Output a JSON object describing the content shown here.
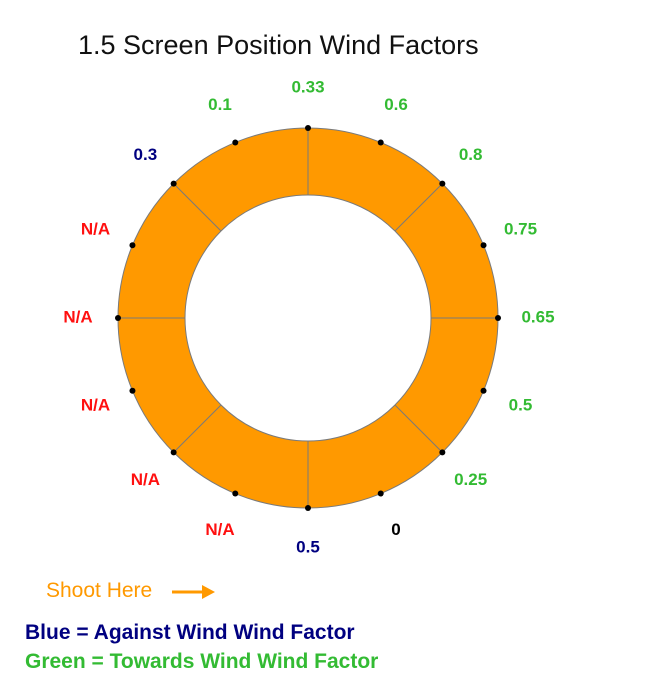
{
  "title": "1.5 Screen Position Wind Factors",
  "shoot_label": "Shoot Here",
  "legend": {
    "blue": "Blue = Against Wind Wind Factor",
    "green": "Green = Towards Wind Wind Factor"
  },
  "colors": {
    "ring_fill": "#ff9900",
    "blue": "#000080",
    "green": "#33bb33",
    "red": "#ff1010",
    "black": "#000000",
    "orange_text": "#ff9900"
  },
  "positions": [
    {
      "label": "0.33",
      "color": "green"
    },
    {
      "label": "0.6",
      "color": "green"
    },
    {
      "label": "0.8",
      "color": "green"
    },
    {
      "label": "0.75",
      "color": "green"
    },
    {
      "label": "0.65",
      "color": "green"
    },
    {
      "label": "0.5",
      "color": "green"
    },
    {
      "label": "0.25",
      "color": "green"
    },
    {
      "label": "0",
      "color": "black"
    },
    {
      "label": "0.5",
      "color": "blue"
    },
    {
      "label": "N/A",
      "color": "red"
    },
    {
      "label": "N/A",
      "color": "red"
    },
    {
      "label": "N/A",
      "color": "red"
    },
    {
      "label": "N/A",
      "color": "red"
    },
    {
      "label": "N/A",
      "color": "red"
    },
    {
      "label": "0.3",
      "color": "blue"
    },
    {
      "label": "0.1",
      "color": "green"
    }
  ]
}
